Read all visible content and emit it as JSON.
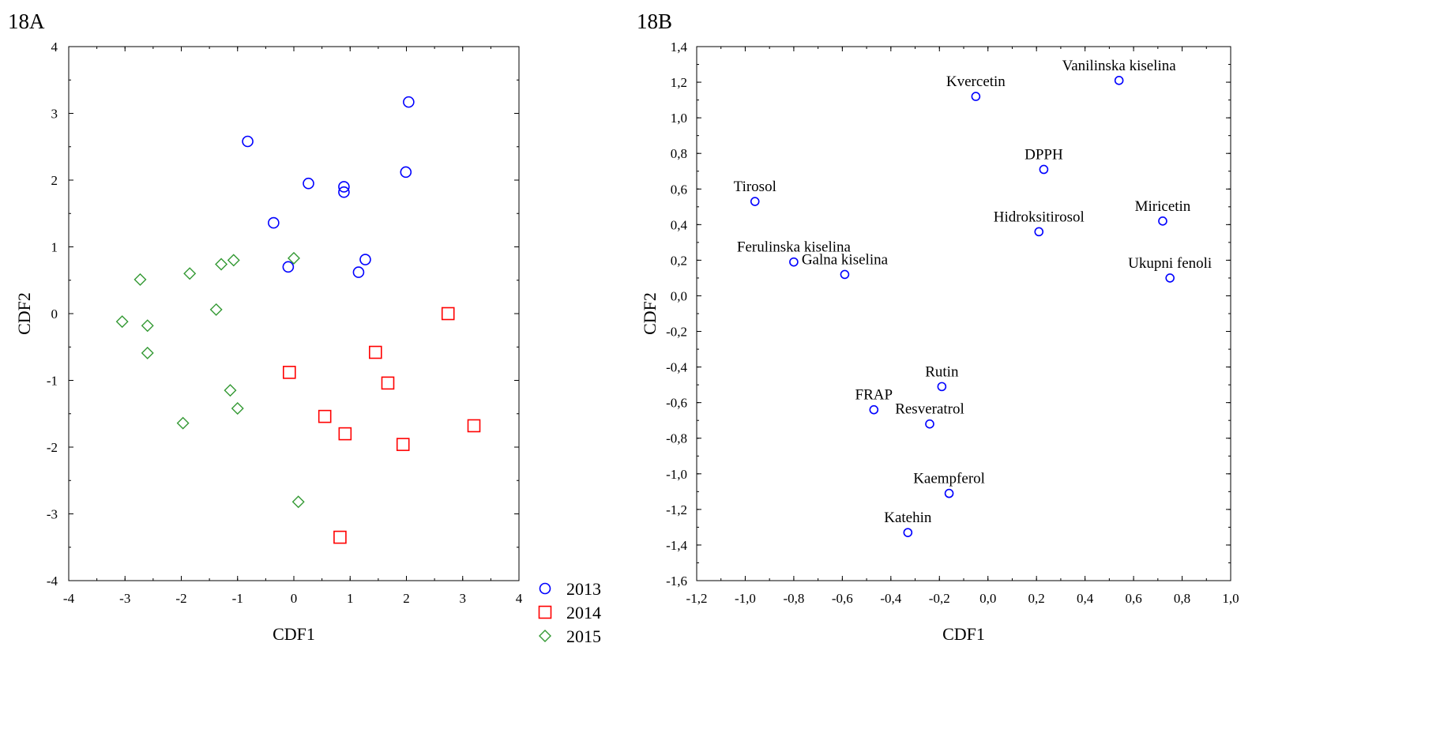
{
  "chart_data": [
    {
      "type": "scatter",
      "panel_label": "18A",
      "xlabel": "CDF1",
      "ylabel": "CDF2",
      "xlim": [
        -4,
        4
      ],
      "ylim": [
        -4,
        4
      ],
      "x_ticks": [
        -4,
        -3,
        -2,
        -1,
        0,
        1,
        2,
        3,
        4
      ],
      "y_ticks": [
        -4,
        -3,
        -2,
        -1,
        0,
        1,
        2,
        3,
        4
      ],
      "x_tick_labels": [
        "-4",
        "-3",
        "-2",
        "-1",
        "0",
        "1",
        "2",
        "3",
        "4"
      ],
      "y_tick_labels": [
        "-4",
        "-3",
        "-2",
        "-1",
        "0",
        "1",
        "2",
        "3",
        "4"
      ],
      "grid": false,
      "legend": "bottom-right, outside",
      "series": [
        {
          "name": "2013",
          "marker": "circle",
          "color": "#0000ff",
          "points": [
            [
              -0.82,
              2.58
            ],
            [
              0.26,
              1.95
            ],
            [
              0.89,
              1.9
            ],
            [
              0.89,
              1.82
            ],
            [
              -0.36,
              1.36
            ],
            [
              2.04,
              3.17
            ],
            [
              1.99,
              2.12
            ],
            [
              -0.1,
              0.7
            ],
            [
              1.27,
              0.81
            ],
            [
              1.15,
              0.62
            ]
          ]
        },
        {
          "name": "2014",
          "marker": "square",
          "color": "#ff0000",
          "points": [
            [
              2.74,
              0.0
            ],
            [
              1.45,
              -0.58
            ],
            [
              -0.08,
              -0.88
            ],
            [
              1.67,
              -1.04
            ],
            [
              0.55,
              -1.54
            ],
            [
              0.91,
              -1.8
            ],
            [
              1.94,
              -1.96
            ],
            [
              3.2,
              -1.68
            ],
            [
              0.82,
              -3.35
            ]
          ]
        },
        {
          "name": "2015",
          "marker": "diamond",
          "color": "#339933",
          "points": [
            [
              -2.73,
              0.51
            ],
            [
              -1.85,
              0.6
            ],
            [
              -1.29,
              0.74
            ],
            [
              -1.07,
              0.8
            ],
            [
              0.0,
              0.83
            ],
            [
              -3.05,
              -0.12
            ],
            [
              -2.6,
              -0.18
            ],
            [
              -1.38,
              0.06
            ],
            [
              -2.6,
              -0.59
            ],
            [
              -1.13,
              -1.15
            ],
            [
              -1.0,
              -1.42
            ],
            [
              -1.97,
              -1.64
            ],
            [
              0.08,
              -2.82
            ]
          ]
        }
      ]
    },
    {
      "type": "scatter",
      "panel_label": "18B",
      "xlabel": "CDF1",
      "ylabel": "CDF2",
      "xlim": [
        -1.2,
        1.0
      ],
      "ylim": [
        -1.6,
        1.4
      ],
      "x_ticks": [
        -1.2,
        -1.0,
        -0.8,
        -0.6,
        -0.4,
        -0.2,
        0.0,
        0.2,
        0.4,
        0.6,
        0.8,
        1.0
      ],
      "y_ticks": [
        -1.6,
        -1.4,
        -1.2,
        -1.0,
        -0.8,
        -0.6,
        -0.4,
        -0.2,
        0.0,
        0.2,
        0.4,
        0.6,
        0.8,
        1.0,
        1.2,
        1.4
      ],
      "x_tick_labels": [
        "-1,2",
        "-1,0",
        "-0,8",
        "-0,6",
        "-0,4",
        "-0,2",
        "0,0",
        "0,2",
        "0,4",
        "0,6",
        "0,8",
        "1,0"
      ],
      "y_tick_labels": [
        "-1,6",
        "-1,4",
        "-1,2",
        "-1,0",
        "-0,8",
        "-0,6",
        "-0,4",
        "-0,2",
        "0,0",
        "0,2",
        "0,4",
        "0,6",
        "0,8",
        "1,0",
        "1,2",
        "1,4"
      ],
      "grid": false,
      "marker": "circle",
      "color": "#0000ff",
      "points": [
        {
          "label": "Kvercetin",
          "x": -0.05,
          "y": 1.12
        },
        {
          "label": "Vanilinska kiselina",
          "x": 0.54,
          "y": 1.21
        },
        {
          "label": "DPPH",
          "x": 0.23,
          "y": 0.71
        },
        {
          "label": "Tirosol",
          "x": -0.96,
          "y": 0.53
        },
        {
          "label": "Hidroksitirosol",
          "x": 0.21,
          "y": 0.36
        },
        {
          "label": "Miricetin",
          "x": 0.72,
          "y": 0.42
        },
        {
          "label": "Ferulinska kiselina",
          "x": -0.8,
          "y": 0.19
        },
        {
          "label": "Galna kiselina",
          "x": -0.59,
          "y": 0.12
        },
        {
          "label": "Ukupni fenoli",
          "x": 0.75,
          "y": 0.1
        },
        {
          "label": "Rutin",
          "x": -0.19,
          "y": -0.51
        },
        {
          "label": "FRAP",
          "x": -0.47,
          "y": -0.64
        },
        {
          "label": "Resveratrol",
          "x": -0.24,
          "y": -0.72
        },
        {
          "label": "Kaempferol",
          "x": -0.16,
          "y": -1.11
        },
        {
          "label": "Katehin",
          "x": -0.33,
          "y": -1.33
        }
      ]
    }
  ]
}
